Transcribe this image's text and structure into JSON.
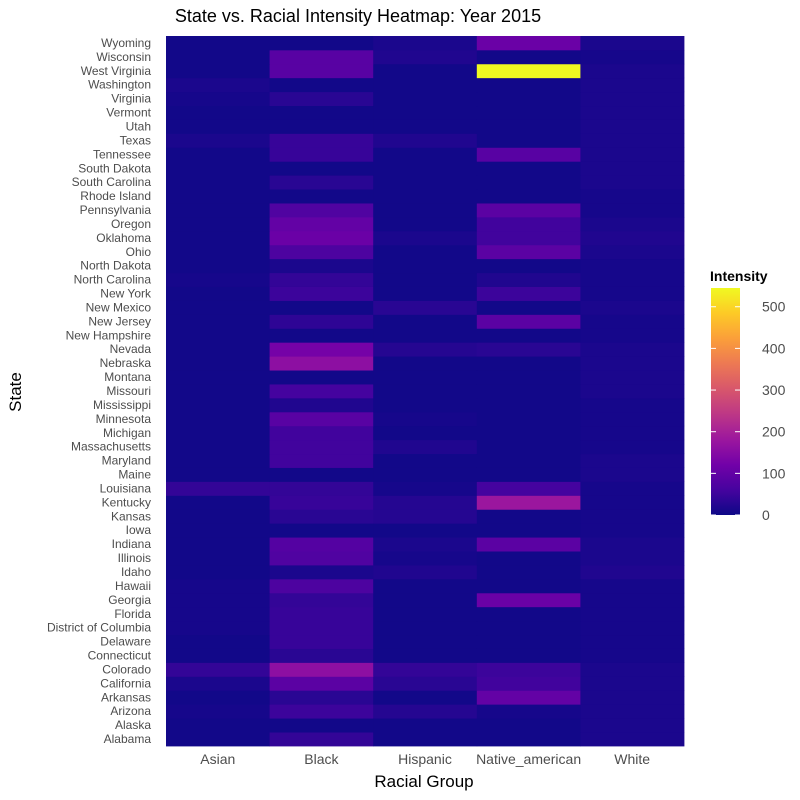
{
  "chart_data": {
    "type": "heatmap",
    "title": "State vs. Racial Intensity Heatmap: Year 2015",
    "xlabel": "Racial Group",
    "ylabel": "State",
    "x_categories": [
      "Asian",
      "Black",
      "Hispanic",
      "Native_american",
      "White"
    ],
    "y_categories": [
      "Alabama",
      "Alaska",
      "Arizona",
      "Arkansas",
      "California",
      "Colorado",
      "Connecticut",
      "Delaware",
      "District of Columbia",
      "Florida",
      "Georgia",
      "Hawaii",
      "Idaho",
      "Illinois",
      "Indiana",
      "Iowa",
      "Kansas",
      "Kentucky",
      "Louisiana",
      "Maine",
      "Maryland",
      "Massachusetts",
      "Michigan",
      "Minnesota",
      "Mississippi",
      "Missouri",
      "Montana",
      "Nebraska",
      "Nevada",
      "New Hampshire",
      "New Jersey",
      "New Mexico",
      "New York",
      "North Carolina",
      "North Dakota",
      "Ohio",
      "Oklahoma",
      "Oregon",
      "Pennsylvania",
      "Rhode Island",
      "South Carolina",
      "South Dakota",
      "Tennessee",
      "Texas",
      "Utah",
      "Vermont",
      "Virginia",
      "Washington",
      "West Virginia",
      "Wisconsin",
      "Wyoming"
    ],
    "values": [
      [
        5,
        40,
        5,
        5,
        15
      ],
      [
        5,
        5,
        5,
        5,
        15
      ],
      [
        10,
        50,
        25,
        10,
        15
      ],
      [
        5,
        30,
        5,
        100,
        15
      ],
      [
        15,
        90,
        30,
        55,
        15
      ],
      [
        40,
        160,
        40,
        50,
        15
      ],
      [
        5,
        30,
        5,
        5,
        10
      ],
      [
        5,
        45,
        5,
        5,
        10
      ],
      [
        10,
        45,
        5,
        5,
        10
      ],
      [
        10,
        45,
        5,
        5,
        10
      ],
      [
        10,
        40,
        5,
        110,
        10
      ],
      [
        10,
        70,
        5,
        5,
        10
      ],
      [
        5,
        15,
        20,
        5,
        20
      ],
      [
        5,
        75,
        10,
        5,
        15
      ],
      [
        5,
        80,
        15,
        90,
        15
      ],
      [
        5,
        5,
        5,
        5,
        10
      ],
      [
        5,
        30,
        25,
        5,
        10
      ],
      [
        5,
        45,
        25,
        180,
        10
      ],
      [
        40,
        40,
        10,
        60,
        10
      ],
      [
        5,
        5,
        5,
        5,
        15
      ],
      [
        5,
        55,
        5,
        5,
        15
      ],
      [
        5,
        55,
        20,
        5,
        10
      ],
      [
        5,
        55,
        5,
        5,
        10
      ],
      [
        5,
        85,
        10,
        5,
        10
      ],
      [
        5,
        20,
        5,
        5,
        10
      ],
      [
        5,
        60,
        5,
        5,
        15
      ],
      [
        5,
        5,
        5,
        5,
        15
      ],
      [
        5,
        160,
        5,
        5,
        15
      ],
      [
        5,
        125,
        25,
        30,
        15
      ],
      [
        5,
        5,
        5,
        5,
        10
      ],
      [
        5,
        35,
        5,
        90,
        10
      ],
      [
        5,
        5,
        30,
        5,
        15
      ],
      [
        5,
        50,
        5,
        50,
        10
      ],
      [
        10,
        40,
        5,
        20,
        10
      ],
      [
        5,
        15,
        5,
        5,
        10
      ],
      [
        5,
        70,
        5,
        90,
        15
      ],
      [
        5,
        110,
        15,
        55,
        20
      ],
      [
        5,
        100,
        5,
        55,
        15
      ],
      [
        5,
        75,
        5,
        90,
        10
      ],
      [
        5,
        5,
        5,
        5,
        10
      ],
      [
        5,
        30,
        5,
        5,
        15
      ],
      [
        5,
        5,
        5,
        5,
        15
      ],
      [
        5,
        45,
        5,
        85,
        15
      ],
      [
        15,
        45,
        20,
        5,
        15
      ],
      [
        5,
        5,
        5,
        5,
        15
      ],
      [
        5,
        5,
        5,
        5,
        15
      ],
      [
        10,
        30,
        5,
        5,
        15
      ],
      [
        15,
        5,
        5,
        5,
        15
      ],
      [
        5,
        85,
        5,
        545,
        15
      ],
      [
        5,
        85,
        20,
        5,
        10
      ],
      [
        5,
        5,
        15,
        110,
        15
      ]
    ],
    "color_scale": {
      "name": "plasma",
      "domain": [
        0,
        545
      ],
      "ticks": [
        0,
        100,
        200,
        300,
        400,
        500
      ],
      "stops": [
        "#0d0887",
        "#46039f",
        "#7201a8",
        "#9c179e",
        "#bd3786",
        "#d8576b",
        "#ed7953",
        "#fb9f3a",
        "#fdca26",
        "#f0f921"
      ]
    },
    "legend": {
      "title": "Intensity",
      "placement": "right"
    },
    "grid": false,
    "panel_background": "#0d0887"
  }
}
